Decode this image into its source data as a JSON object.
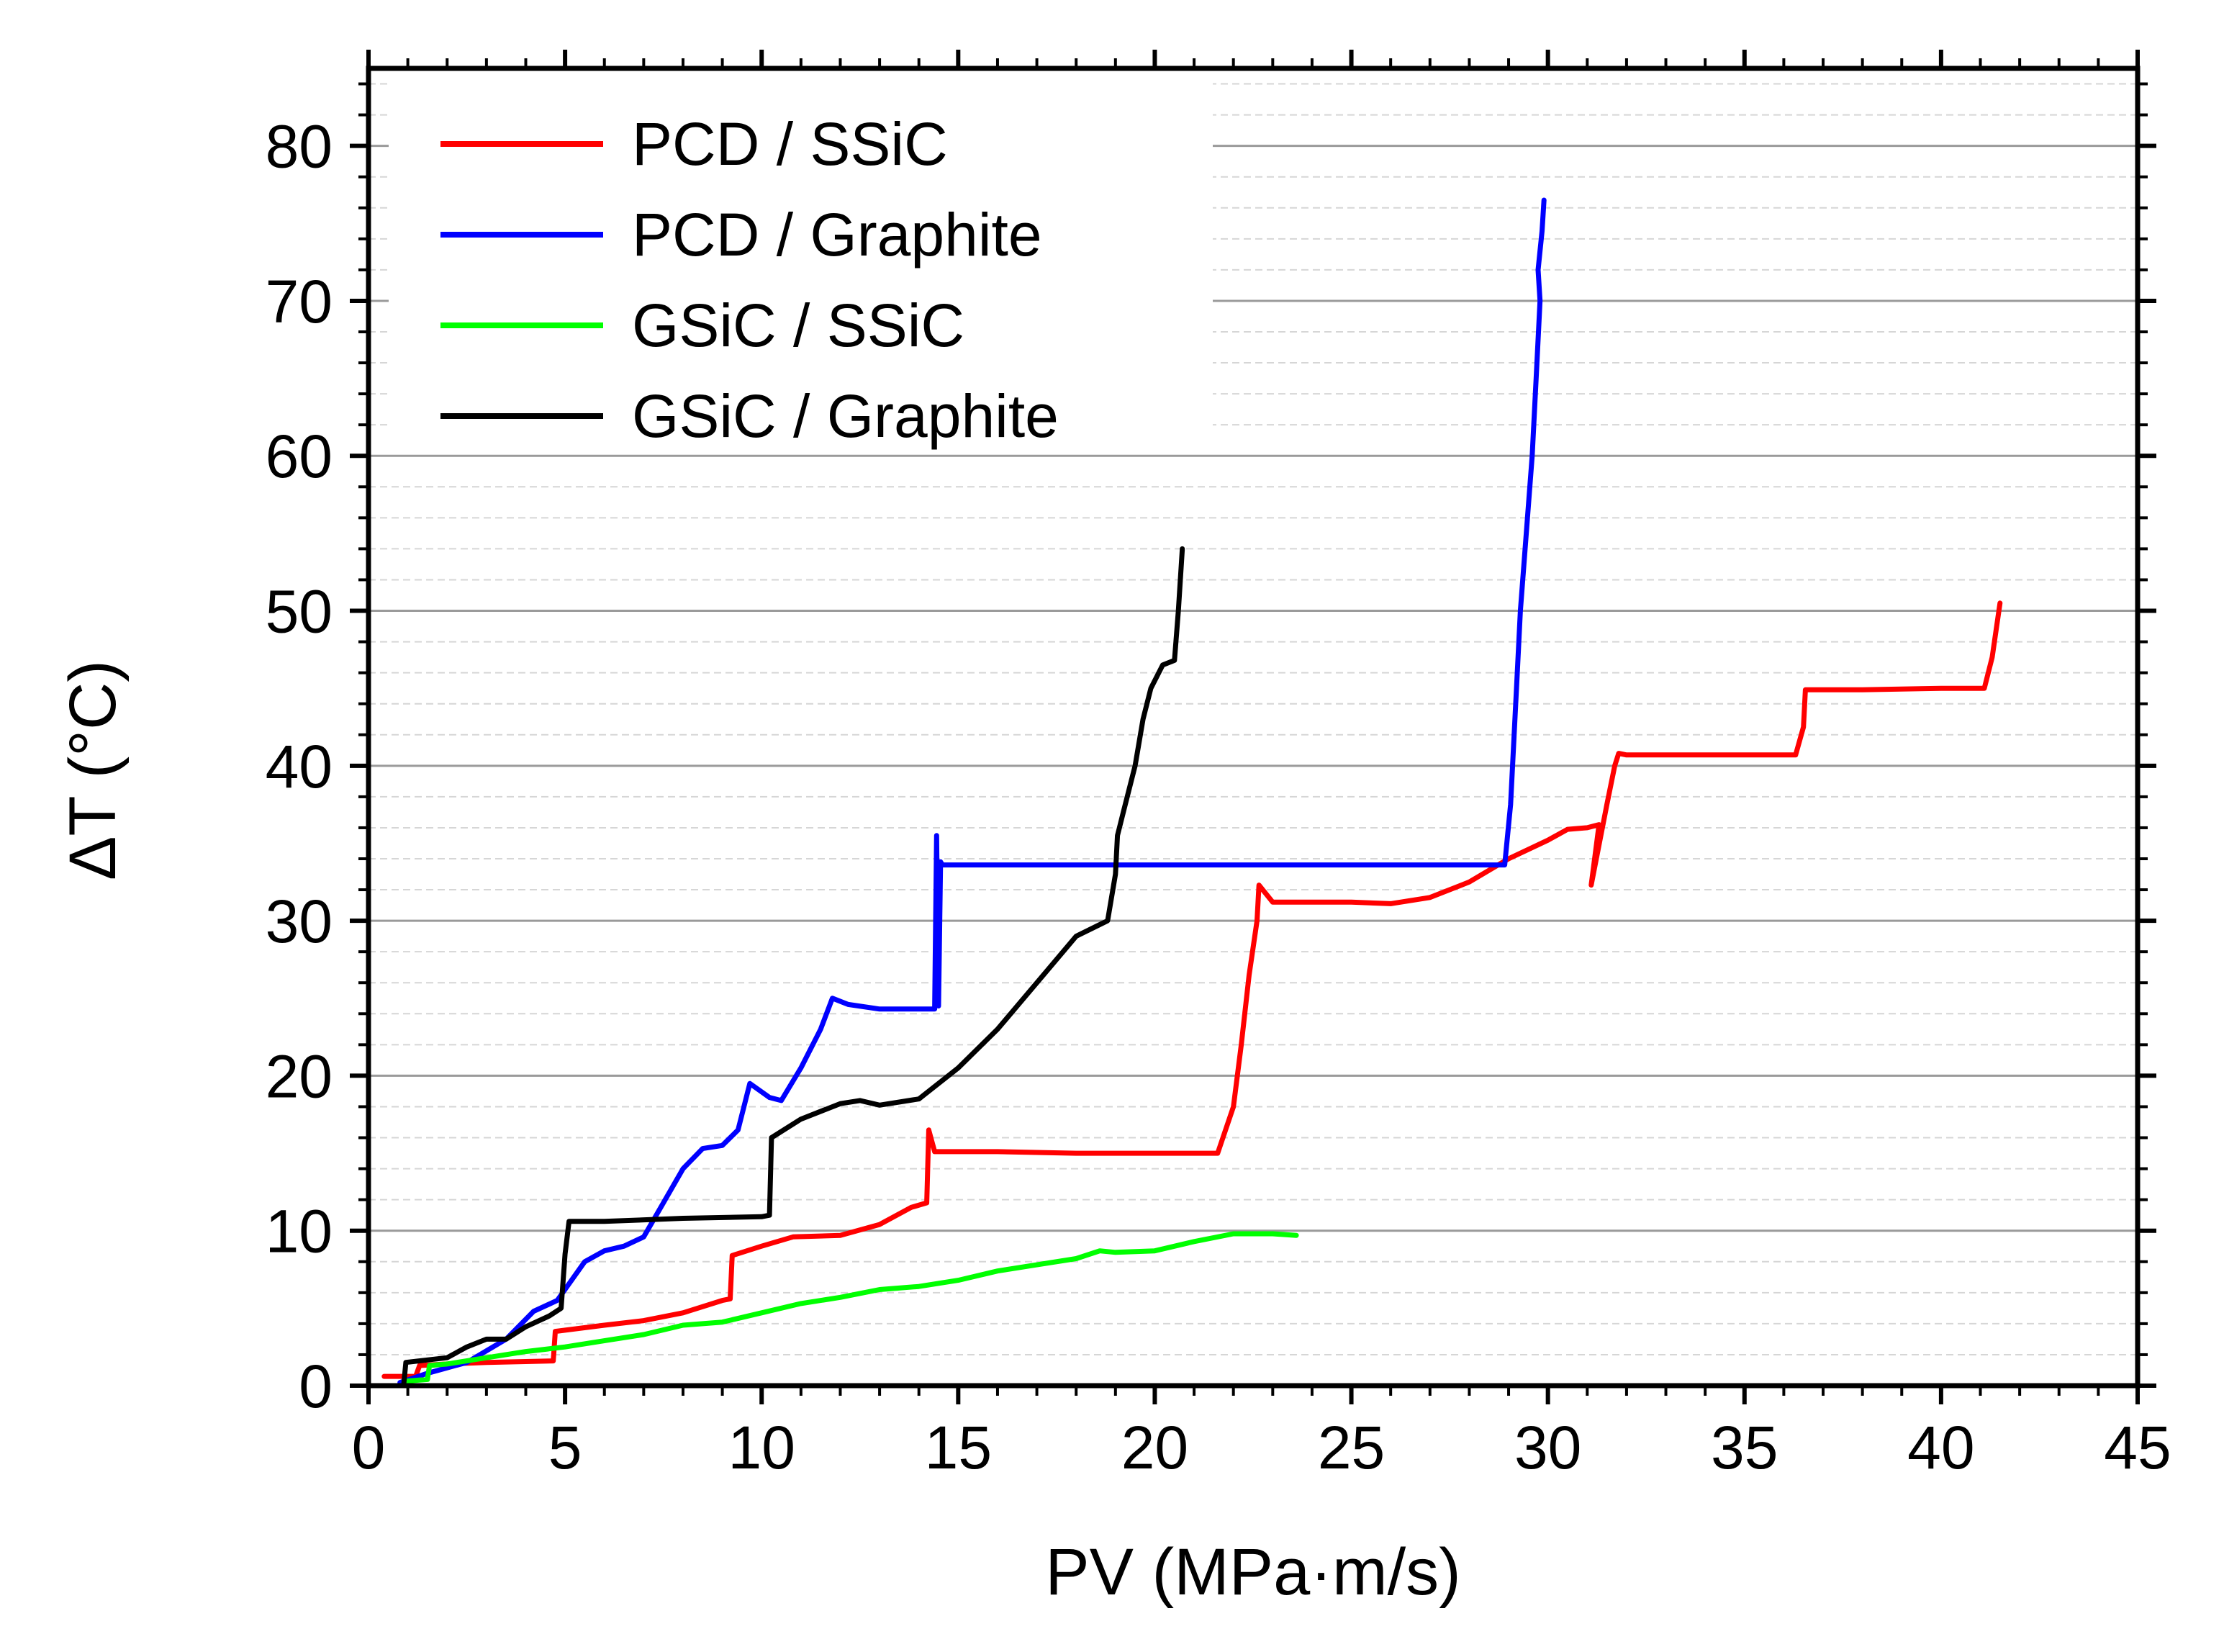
{
  "chart_data": {
    "type": "line",
    "xlabel": "PV (MPa·m/s)",
    "ylabel": "ΔT (°C)",
    "xlim": [
      0,
      45
    ],
    "ylim": [
      0,
      85
    ],
    "xticks": [
      0,
      5,
      10,
      15,
      20,
      25,
      30,
      35,
      40,
      45
    ],
    "yticks": [
      0,
      10,
      20,
      30,
      40,
      50,
      60,
      70,
      80
    ],
    "x_tick_labels": [
      "0",
      "5",
      "10",
      "15",
      "20",
      "25",
      "30",
      "35",
      "40",
      "45"
    ],
    "y_tick_labels": [
      "0",
      "10",
      "20",
      "30",
      "40",
      "50",
      "60",
      "70",
      "80"
    ],
    "grid": "horizontal major and minor",
    "legend_position": "top-left",
    "series": [
      {
        "name": "PCD / SSiC",
        "color": "#ff0000",
        "x": [
          0.4,
          1.2,
          1.3,
          2.0,
          3.0,
          4.7,
          4.75,
          6.0,
          7.0,
          8.0,
          9.0,
          9.2,
          9.25,
          10.0,
          10.8,
          12.0,
          13.0,
          13.8,
          14.2,
          14.25,
          14.4,
          16.0,
          18.0,
          20.0,
          21.6,
          22.0,
          22.2,
          22.4,
          22.6,
          22.65,
          23.0,
          25.0,
          26.0,
          27.0,
          28.0,
          29.0,
          30.0,
          30.5,
          31.0,
          31.3,
          31.1,
          31.5,
          31.7,
          31.8,
          32.0,
          34.0,
          36.3,
          36.5,
          36.55,
          38.0,
          40.0,
          41.1,
          41.3,
          41.5
        ],
        "y": [
          0.6,
          0.6,
          1.3,
          1.4,
          1.5,
          1.6,
          3.5,
          3.9,
          4.2,
          4.7,
          5.5,
          5.6,
          8.4,
          9.0,
          9.6,
          9.7,
          10.4,
          11.5,
          11.8,
          16.5,
          15.1,
          15.1,
          15.0,
          15.0,
          15.0,
          18.0,
          22.0,
          26.5,
          30.0,
          32.3,
          31.2,
          31.2,
          31.1,
          31.5,
          32.5,
          34.0,
          35.2,
          35.9,
          36.0,
          36.2,
          32.3,
          37.5,
          40.0,
          40.8,
          40.7,
          40.7,
          40.7,
          42.5,
          44.9,
          44.9,
          45.0,
          45.0,
          47.0,
          50.5
        ]
      },
      {
        "name": "PCD / Graphite",
        "color": "#0000ff",
        "x": [
          0.8,
          1.5,
          2.5,
          3.5,
          4.2,
          4.8,
          5.5,
          6.0,
          6.5,
          7.0,
          7.5,
          8.0,
          8.5,
          9.0,
          9.4,
          9.7,
          10.2,
          10.5,
          11.0,
          11.5,
          11.8,
          12.2,
          13.0,
          14.0,
          14.4,
          14.45,
          14.5,
          14.55,
          14.6,
          17.0,
          20.0,
          25.0,
          28.9,
          29.05,
          29.2,
          29.3,
          29.45,
          29.6,
          29.7,
          29.8,
          29.75,
          29.85,
          29.9
        ],
        "y": [
          0.2,
          0.8,
          1.5,
          3.0,
          4.8,
          5.5,
          8.0,
          8.7,
          9.0,
          9.6,
          11.8,
          14.0,
          15.3,
          15.5,
          16.5,
          19.5,
          18.6,
          18.4,
          20.5,
          23.0,
          25.0,
          24.6,
          24.3,
          24.3,
          24.3,
          35.5,
          24.5,
          33.8,
          33.6,
          33.6,
          33.6,
          33.6,
          33.6,
          37.5,
          45.0,
          50.0,
          55.0,
          60.0,
          65.0,
          70.0,
          72.0,
          74.5,
          76.5
        ]
      },
      {
        "name": "GSiC / SSiC",
        "color": "#00ff00",
        "x": [
          1.0,
          1.5,
          1.55,
          2.0,
          3.0,
          4.0,
          5.0,
          6.0,
          7.0,
          8.0,
          9.0,
          10.0,
          11.0,
          12.0,
          13.0,
          14.0,
          15.0,
          16.0,
          17.0,
          18.0,
          18.6,
          19.0,
          20.0,
          21.0,
          22.0,
          23.0,
          23.6
        ],
        "y": [
          0.3,
          0.4,
          1.3,
          1.4,
          1.8,
          2.2,
          2.5,
          2.9,
          3.3,
          3.9,
          4.1,
          4.7,
          5.3,
          5.7,
          6.2,
          6.4,
          6.8,
          7.4,
          7.8,
          8.2,
          8.7,
          8.6,
          8.7,
          9.3,
          9.8,
          9.8,
          9.7
        ]
      },
      {
        "name": "GSiC / Graphite",
        "color": "#000000",
        "x": [
          0.9,
          0.95,
          2.0,
          2.5,
          3.0,
          3.5,
          4.0,
          4.6,
          4.9,
          5.0,
          5.1,
          6.0,
          8.0,
          10.0,
          10.2,
          10.25,
          11.0,
          12.0,
          12.5,
          13.0,
          14.0,
          15.0,
          16.0,
          17.0,
          18.0,
          18.8,
          19.0,
          19.05,
          19.2,
          19.5,
          19.7,
          19.9,
          20.2,
          20.5,
          20.6,
          20.7
        ],
        "y": [
          0.2,
          1.5,
          1.8,
          2.5,
          3.0,
          3.0,
          3.8,
          4.5,
          5.0,
          8.5,
          10.6,
          10.6,
          10.8,
          10.9,
          11.0,
          16.0,
          17.2,
          18.2,
          18.4,
          18.1,
          18.5,
          20.5,
          23.0,
          26.0,
          29.0,
          30.0,
          33.0,
          35.5,
          37.0,
          40.0,
          43.0,
          45.0,
          46.5,
          46.8,
          50.0,
          54.0
        ]
      }
    ]
  }
}
